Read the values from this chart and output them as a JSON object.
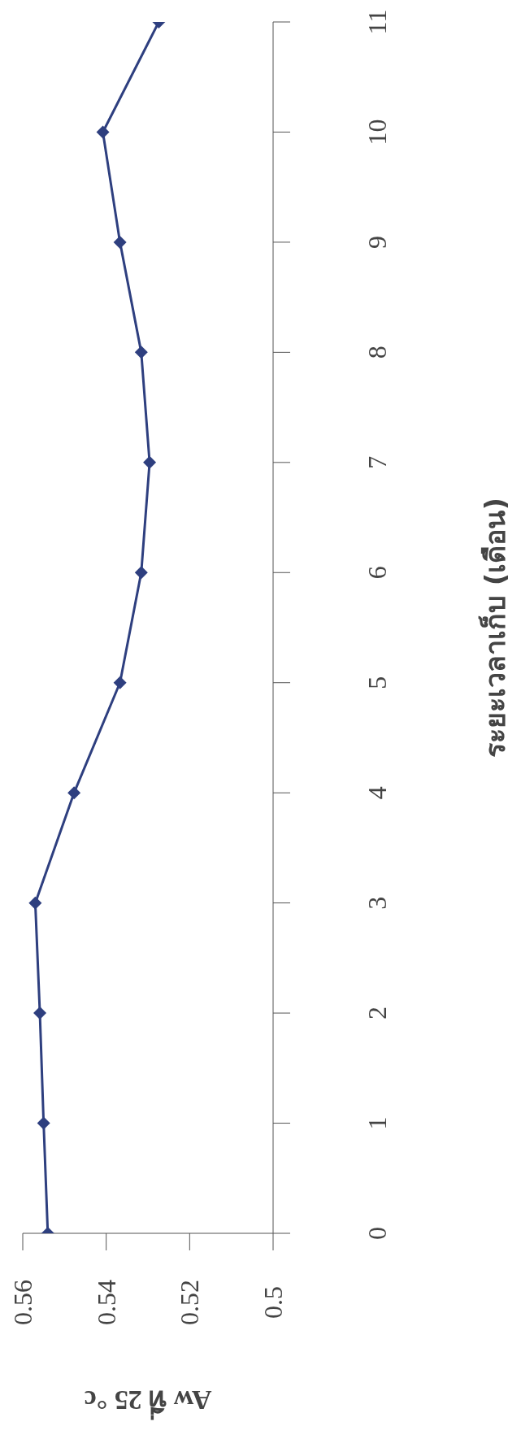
{
  "chart_data": {
    "type": "line",
    "xlabel": "Aw ที่ 25 °c",
    "ylabel": "ระยะเวลาเก็บ (เดือน)",
    "x": [
      0.554,
      0.555,
      0.5559,
      0.557,
      0.5477,
      0.5367,
      0.5316,
      0.5296,
      0.5316,
      0.5367,
      0.5408,
      0.5274
    ],
    "series": [
      {
        "color": "#2e3f7f",
        "values": [
          0,
          1,
          2,
          3,
          4,
          5,
          6,
          7,
          8,
          9,
          10,
          11
        ]
      }
    ],
    "xlim": [
      0.56,
      0.5
    ],
    "xticks": [
      0.5,
      0.52,
      0.54,
      0.56
    ],
    "ylim": [
      0,
      11
    ],
    "yticks": [
      0,
      1,
      2,
      3,
      4,
      5,
      6,
      7,
      8,
      9,
      10,
      11
    ],
    "marker": "diamond"
  }
}
